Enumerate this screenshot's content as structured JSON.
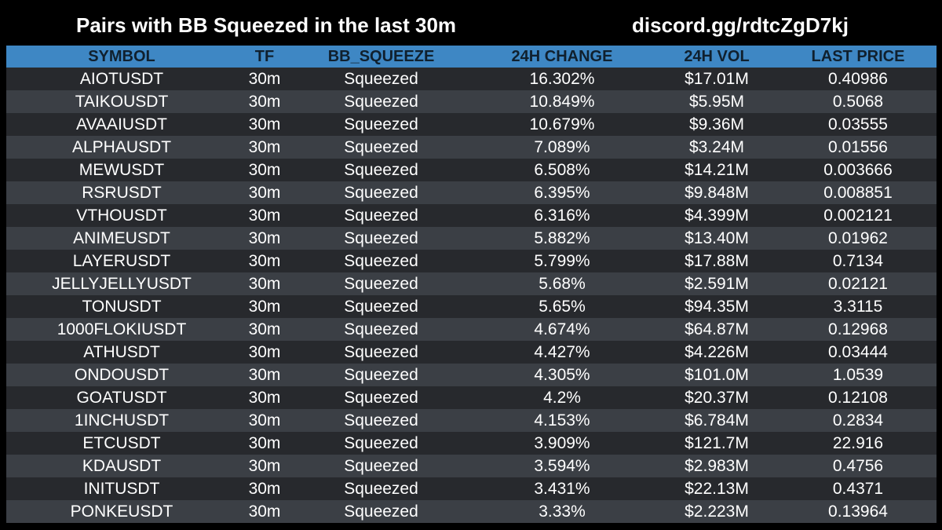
{
  "header": {
    "title": "Pairs with BB Squeezed in the last 30m",
    "invite": "discord.gg/rdtcZgD7kj"
  },
  "colors": {
    "background": "#000000",
    "header_row": "#3e87c4",
    "row_dark": "#27292d",
    "row_light": "#3b3f45",
    "text": "#ffffff"
  },
  "table": {
    "columns": [
      "SYMBOL",
      "TF",
      "BB_SQUEEZE",
      "24H CHANGE",
      "24H VOL",
      "LAST PRICE"
    ],
    "rows": [
      [
        "AIOTUSDT",
        "30m",
        "Squeezed",
        "16.302%",
        "$17.01M",
        "0.40986"
      ],
      [
        "TAIKOUSDT",
        "30m",
        "Squeezed",
        "10.849%",
        "$5.95M",
        "0.5068"
      ],
      [
        "AVAAIUSDT",
        "30m",
        "Squeezed",
        "10.679%",
        "$9.36M",
        "0.03555"
      ],
      [
        "ALPHAUSDT",
        "30m",
        "Squeezed",
        "7.089%",
        "$3.24M",
        "0.01556"
      ],
      [
        "MEWUSDT",
        "30m",
        "Squeezed",
        "6.508%",
        "$14.21M",
        "0.003666"
      ],
      [
        "RSRUSDT",
        "30m",
        "Squeezed",
        "6.395%",
        "$9.848M",
        "0.008851"
      ],
      [
        "VTHOUSDT",
        "30m",
        "Squeezed",
        "6.316%",
        "$4.399M",
        "0.002121"
      ],
      [
        "ANIMEUSDT",
        "30m",
        "Squeezed",
        "5.882%",
        "$13.40M",
        "0.01962"
      ],
      [
        "LAYERUSDT",
        "30m",
        "Squeezed",
        "5.799%",
        "$17.88M",
        "0.7134"
      ],
      [
        "JELLYJELLYUSDT",
        "30m",
        "Squeezed",
        "5.68%",
        "$2.591M",
        "0.02121"
      ],
      [
        "TONUSDT",
        "30m",
        "Squeezed",
        "5.65%",
        "$94.35M",
        "3.3115"
      ],
      [
        "1000FLOKIUSDT",
        "30m",
        "Squeezed",
        "4.674%",
        "$64.87M",
        "0.12968"
      ],
      [
        "ATHUSDT",
        "30m",
        "Squeezed",
        "4.427%",
        "$4.226M",
        "0.03444"
      ],
      [
        "ONDOUSDT",
        "30m",
        "Squeezed",
        "4.305%",
        "$101.0M",
        "1.0539"
      ],
      [
        "GOATUSDT",
        "30m",
        "Squeezed",
        "4.2%",
        "$20.37M",
        "0.12108"
      ],
      [
        "1INCHUSDT",
        "30m",
        "Squeezed",
        "4.153%",
        "$6.784M",
        "0.2834"
      ],
      [
        "ETCUSDT",
        "30m",
        "Squeezed",
        "3.909%",
        "$121.7M",
        "22.916"
      ],
      [
        "KDAUSDT",
        "30m",
        "Squeezed",
        "3.594%",
        "$2.983M",
        "0.4756"
      ],
      [
        "INITUSDT",
        "30m",
        "Squeezed",
        "3.431%",
        "$22.13M",
        "0.4371"
      ],
      [
        "PONKEUSDT",
        "30m",
        "Squeezed",
        "3.33%",
        "$2.223M",
        "0.13964"
      ]
    ]
  }
}
